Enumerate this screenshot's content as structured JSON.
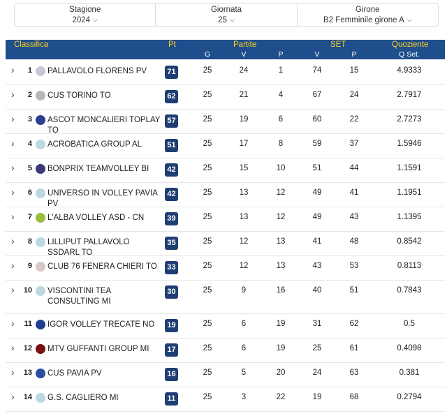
{
  "filters": [
    {
      "label": "Stagione",
      "value": "2024"
    },
    {
      "label": "Giornata",
      "value": "25"
    },
    {
      "label": "Girone",
      "value": "B2 Femminile girone A"
    }
  ],
  "header": {
    "classifica": "Classifica",
    "pt": "Pt",
    "partite": "Partite",
    "set": "SET",
    "quoziente": "Quoziente",
    "g": "G",
    "v": "V",
    "p": "P",
    "set_v": "V",
    "set_p": "P",
    "qset": "Q Set."
  },
  "rows": [
    {
      "pos": "1",
      "team": "PALLAVOLO FLORENS PV",
      "pt": "71",
      "g": "25",
      "v": "24",
      "p": "1",
      "sv": "74",
      "sp": "15",
      "q": "4.9333",
      "logo_color": "#c7c7d6"
    },
    {
      "pos": "2",
      "team": "CUS TORINO TO",
      "pt": "62",
      "g": "25",
      "v": "21",
      "p": "4",
      "sv": "67",
      "sp": "24",
      "q": "2.7917",
      "logo_color": "#b8b8b8"
    },
    {
      "pos": "3",
      "team": "ASCOT MONCALIERI TOPLAY TO",
      "pt": "57",
      "g": "25",
      "v": "19",
      "p": "6",
      "sv": "60",
      "sp": "22",
      "q": "2.7273",
      "logo_color": "#2a3f8f"
    },
    {
      "pos": "4",
      "team": "ACROBATICA GROUP AL",
      "pt": "51",
      "g": "25",
      "v": "17",
      "p": "8",
      "sv": "59",
      "sp": "37",
      "q": "1.5946",
      "logo_color": "#bcd8e0"
    },
    {
      "pos": "5",
      "team": "BONPRIX TEAMVOLLEY BI",
      "pt": "42",
      "g": "25",
      "v": "15",
      "p": "10",
      "sv": "51",
      "sp": "44",
      "q": "1.1591",
      "logo_color": "#3a3a7a"
    },
    {
      "pos": "6",
      "team": "UNIVERSO IN VOLLEY PAVIA PV",
      "pt": "42",
      "g": "25",
      "v": "13",
      "p": "12",
      "sv": "49",
      "sp": "41",
      "q": "1.1951",
      "logo_color": "#bcd8e0"
    },
    {
      "pos": "7",
      "team": "L'ALBA VOLLEY ASD - CN",
      "pt": "39",
      "g": "25",
      "v": "13",
      "p": "12",
      "sv": "49",
      "sp": "43",
      "q": "1.1395",
      "logo_color": "#9bbf3a"
    },
    {
      "pos": "8",
      "team": "LILLIPUT PALLAVOLO SSDARL TO",
      "pt": "35",
      "g": "25",
      "v": "12",
      "p": "13",
      "sv": "41",
      "sp": "48",
      "q": "0.8542",
      "logo_color": "#bcd8e0"
    },
    {
      "pos": "9",
      "team": "CLUB 76 FENERA CHIERI TO",
      "pt": "33",
      "g": "25",
      "v": "12",
      "p": "13",
      "sv": "43",
      "sp": "53",
      "q": "0.8113",
      "logo_color": "#d8c8c8"
    },
    {
      "pos": "10",
      "team": "VISCONTINI TEA CONSULTING MI",
      "pt": "30",
      "g": "25",
      "v": "9",
      "p": "16",
      "sv": "40",
      "sp": "51",
      "q": "0.7843",
      "logo_color": "#bcd8e0"
    },
    {
      "pos": "11",
      "team": "IGOR VOLLEY TRECATE NO",
      "pt": "19",
      "g": "25",
      "v": "6",
      "p": "19",
      "sv": "31",
      "sp": "62",
      "q": "0.5",
      "logo_color": "#1f3f8f"
    },
    {
      "pos": "12",
      "team": "MTV GUFFANTI GROUP MI",
      "pt": "17",
      "g": "25",
      "v": "6",
      "p": "19",
      "sv": "25",
      "sp": "61",
      "q": "0.4098",
      "logo_color": "#7a1010"
    },
    {
      "pos": "13",
      "team": "CUS PAVIA PV",
      "pt": "16",
      "g": "25",
      "v": "5",
      "p": "20",
      "sv": "24",
      "sp": "63",
      "q": "0.381",
      "logo_color": "#2a4f9f"
    },
    {
      "pos": "14",
      "team": "G.S. CAGLIERO MI",
      "pt": "11",
      "g": "25",
      "v": "3",
      "p": "22",
      "sv": "19",
      "sp": "68",
      "q": "0.2794",
      "logo_color": "#bcd8e0"
    }
  ]
}
